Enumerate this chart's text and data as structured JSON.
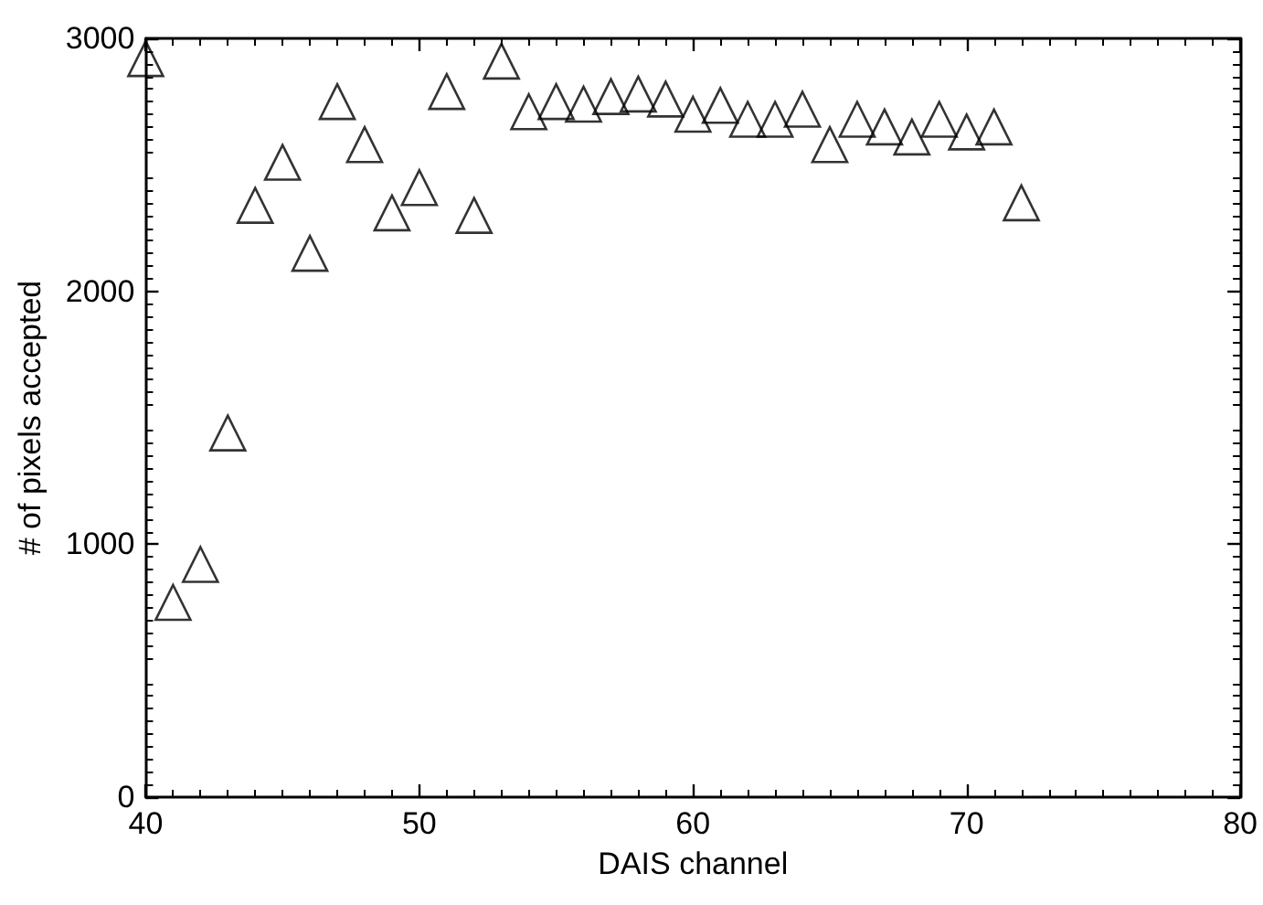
{
  "chart_data": {
    "type": "scatter",
    "xlabel": "DAIS channel",
    "ylabel": "# of pixels accepted",
    "x": [
      40,
      41,
      42,
      43,
      44,
      45,
      46,
      47,
      48,
      49,
      50,
      51,
      52,
      53,
      54,
      55,
      56,
      57,
      58,
      59,
      60,
      61,
      62,
      63,
      64,
      65,
      66,
      67,
      68,
      69,
      70,
      71,
      72
    ],
    "series": [
      {
        "color": "#000000",
        "values": [
          2920,
          770,
          920,
          1440,
          2340,
          2510,
          2150,
          2750,
          2580,
          2310,
          2410,
          2790,
          2300,
          2910,
          2710,
          2750,
          2740,
          2770,
          2780,
          2760,
          2700,
          2735,
          2680,
          2680,
          2720,
          2580,
          2680,
          2650,
          2610,
          2680,
          2630,
          2650,
          2350
        ]
      }
    ],
    "xlim": [
      40,
      80
    ],
    "xticks": [
      40,
      50,
      60,
      70,
      80
    ],
    "ylim": [
      0,
      3000
    ],
    "yticks": [
      0,
      1000,
      2000,
      3000
    ],
    "marker": "triangle"
  }
}
